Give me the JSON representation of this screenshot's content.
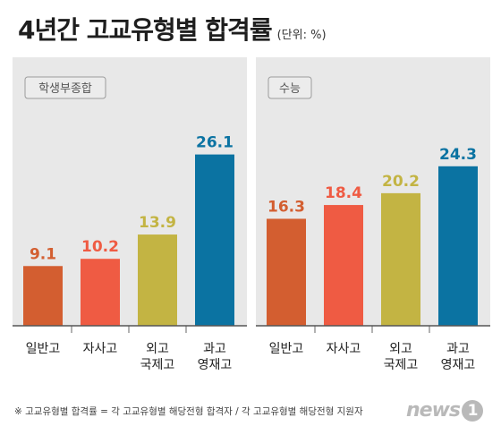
{
  "title": "4년간 고교유형별 합격률",
  "unit": "(단위: %)",
  "footnote": "※ 고교유형별 합격률 = 각 고교유형별 해당전형 합격자 / 각 고교유형별 해당전형 지원자",
  "logo": {
    "text": "news",
    "mark": "1"
  },
  "chart_data": [
    {
      "type": "bar",
      "panel_label": "학생부종합",
      "categories": [
        [
          "일반고"
        ],
        [
          "자사고"
        ],
        [
          "외고",
          "국제고"
        ],
        [
          "과고",
          "영재고"
        ]
      ],
      "values": [
        9.1,
        10.2,
        13.9,
        26.1
      ],
      "value_labels": [
        "9.1",
        "10.2",
        "13.9",
        "26.1"
      ],
      "colors": [
        "#d35e30",
        "#ef5b43",
        "#c3b443",
        "#0b73a2"
      ],
      "ylim": [
        0,
        30
      ]
    },
    {
      "type": "bar",
      "panel_label": "수능",
      "categories": [
        [
          "일반고"
        ],
        [
          "자사고"
        ],
        [
          "외고",
          "국제고"
        ],
        [
          "과고",
          "영재고"
        ]
      ],
      "values": [
        16.3,
        18.4,
        20.2,
        24.3
      ],
      "value_labels": [
        "16.3",
        "18.4",
        "20.2",
        "24.3"
      ],
      "colors": [
        "#d35e30",
        "#ef5b43",
        "#c3b443",
        "#0b73a2"
      ],
      "ylim": [
        0,
        30
      ]
    }
  ]
}
